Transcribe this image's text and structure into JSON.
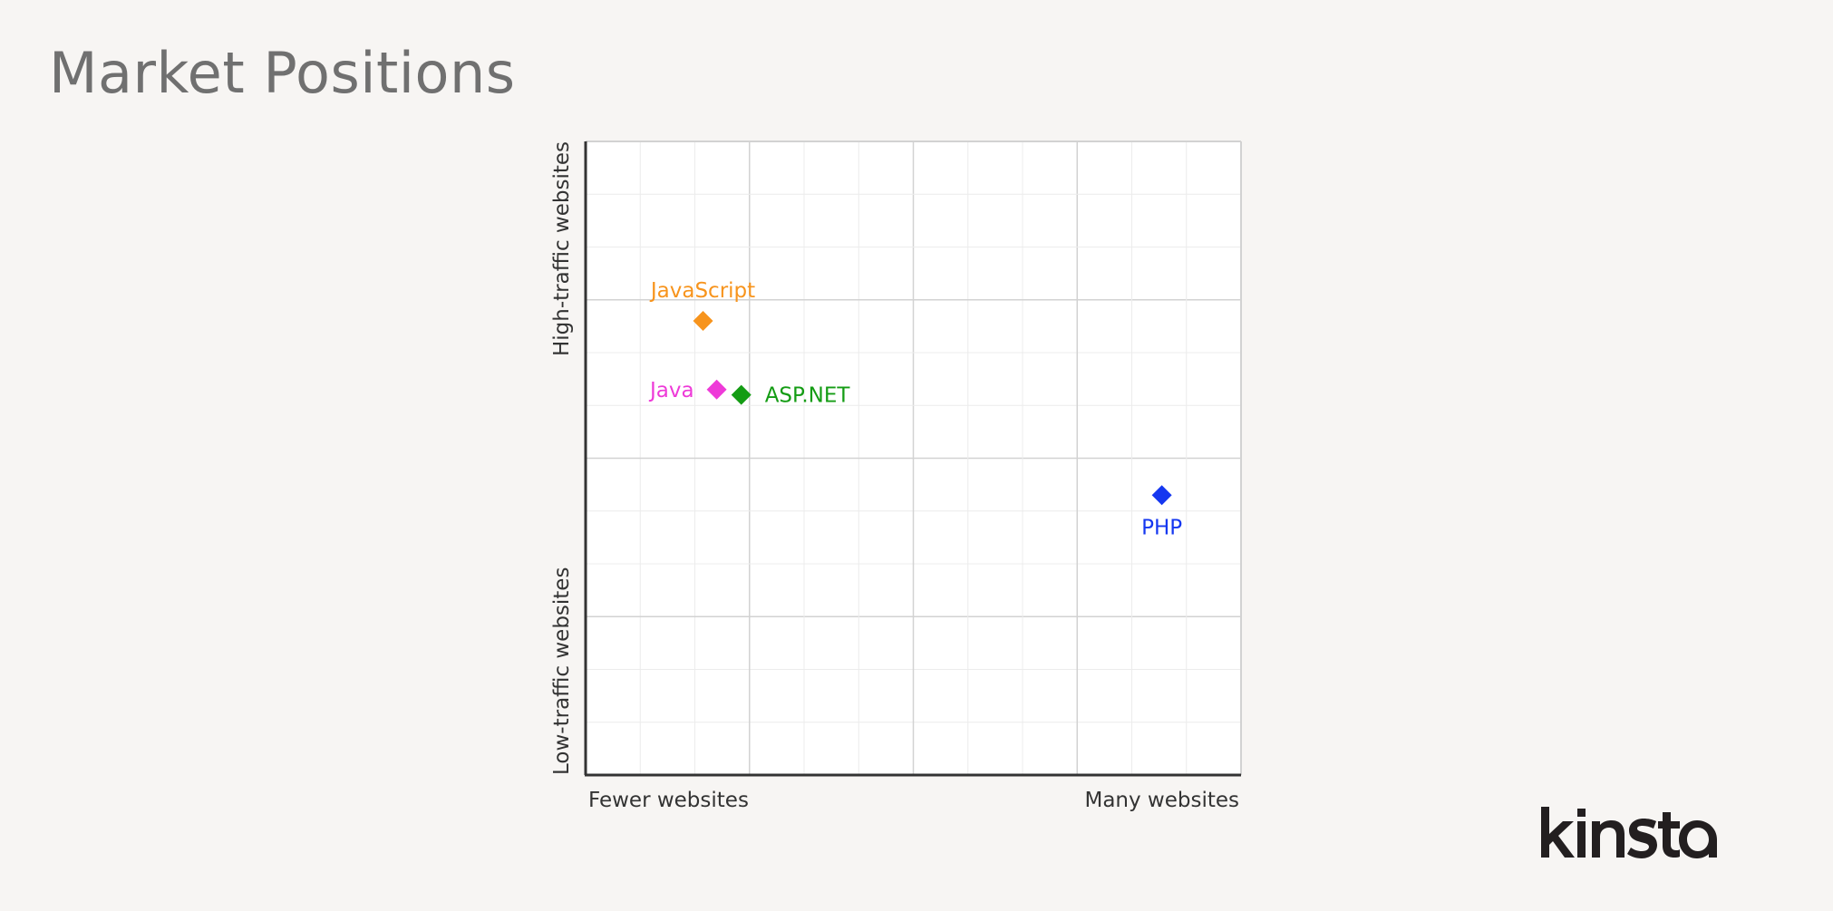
{
  "title": "Market Positions",
  "brand": "kinsta",
  "chart_data": {
    "type": "scatter",
    "title": "Market Positions",
    "xlim": [
      0,
      12
    ],
    "ylim": [
      0,
      12
    ],
    "grid": true,
    "x_axis": {
      "low_label": "Fewer websites",
      "high_label": "Many websites"
    },
    "y_axis": {
      "low_label": "Low-traffic websites",
      "high_label": "High-traffic websites"
    },
    "points": [
      {
        "label": "JavaScript",
        "x": 2.15,
        "y": 8.6,
        "color": "#f7941d",
        "label_pos": "above"
      },
      {
        "label": "Java",
        "x": 2.4,
        "y": 7.3,
        "color": "#ee3ad8",
        "label_pos": "left"
      },
      {
        "label": "ASP.NET",
        "x": 2.85,
        "y": 7.2,
        "color": "#149c14",
        "label_pos": "right"
      },
      {
        "label": "PHP",
        "x": 10.55,
        "y": 5.3,
        "color": "#1537f0",
        "label_pos": "below"
      }
    ]
  }
}
